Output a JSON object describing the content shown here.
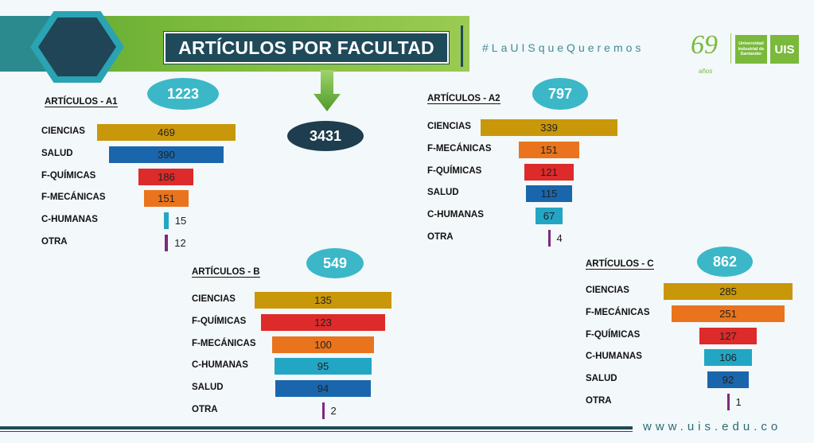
{
  "header": {
    "title": "ARTÍCULOS POR FACULTAD",
    "hashtag": "#LaUISqueQueremos",
    "logo_years": "69",
    "logo_years_sub": "años",
    "logo_text": "Universidad Industrial de Santander",
    "logo_mark": "UIS"
  },
  "total": "3431",
  "footer": {
    "url": "www.uis.edu.co"
  },
  "colors": {
    "CIENCIAS": "#c9970a",
    "SALUD": "#1a66ad",
    "F-QUÍMICAS": "#dd2a2a",
    "F-MECÁNICAS": "#e9741d",
    "C-HUMANAS": "#23a6c4",
    "OTRA": "#7c2a7e"
  },
  "chart_data": [
    {
      "type": "bar",
      "title": "ARTÍCULOS - A1",
      "total": "1223",
      "categories": [
        "CIENCIAS",
        "SALUD",
        "F-QUÍMICAS",
        "F-MECÁNICAS",
        "C-HUMANAS",
        "OTRA"
      ],
      "values": [
        469,
        390,
        186,
        151,
        15,
        12
      ]
    },
    {
      "type": "bar",
      "title": "ARTÍCULOS - A2",
      "total": "797",
      "categories": [
        "CIENCIAS",
        "F-MECÁNICAS",
        "F-QUÍMICAS",
        "SALUD",
        "C-HUMANAS",
        "OTRA"
      ],
      "values": [
        339,
        151,
        121,
        115,
        67,
        4
      ]
    },
    {
      "type": "bar",
      "title": "ARTÍCULOS - B",
      "total": "549",
      "categories": [
        "CIENCIAS",
        "F-QUÍMICAS",
        "F-MECÁNICAS",
        "C-HUMANAS",
        "SALUD",
        "OTRA"
      ],
      "values": [
        135,
        123,
        100,
        95,
        94,
        2
      ]
    },
    {
      "type": "bar",
      "title": "ARTÍCULOS - C",
      "total": "862",
      "categories": [
        "CIENCIAS",
        "F-MECÁNICAS",
        "F-QUÍMICAS",
        "C-HUMANAS",
        "SALUD",
        "OTRA"
      ],
      "values": [
        285,
        251,
        127,
        106,
        92,
        1
      ]
    }
  ]
}
